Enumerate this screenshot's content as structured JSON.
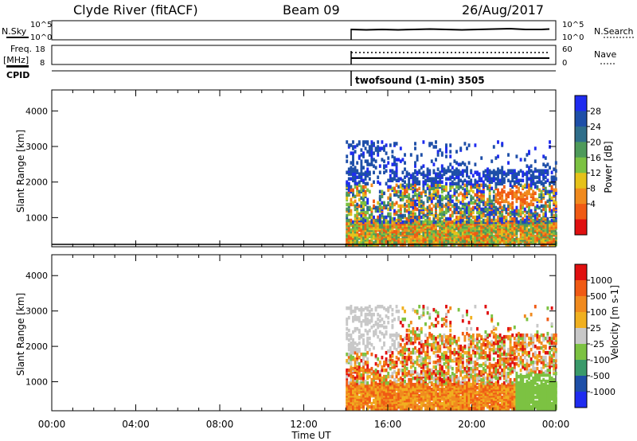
{
  "header": {
    "station": "Clyde River (fitACF)",
    "beam": "Beam 09",
    "date": "26/Aug/2017"
  },
  "summary": {
    "nsky_label": "N.Sky",
    "nsky_ticks": [
      "10^5",
      "10^0"
    ],
    "nsearch_label": "N.Search",
    "nsearch_ticks": [
      "10^5",
      "10^0"
    ],
    "freq_label_1": "Freq.",
    "freq_label_2": "[MHz]",
    "freq_ticks": [
      "18",
      "8"
    ],
    "nave_label": "Nave",
    "nave_ticks": [
      "60",
      "0"
    ],
    "cpid_label": "CPID",
    "cpid_text": "twofsound (1-min) 3505"
  },
  "colors": {
    "power": [
      "#1f2cf0",
      "#1e4fa8",
      "#2f6e8a",
      "#4e9a5a",
      "#7cc242",
      "#e6c21a",
      "#f08a1e",
      "#f05a14",
      "#e01010"
    ],
    "velocity": [
      "#e01010",
      "#f05a14",
      "#f08a1e",
      "#f0b020",
      "#c8c8c8",
      "#7cc242",
      "#3a9a6a",
      "#1e4fa8",
      "#1f2cf0"
    ]
  },
  "chart_data": [
    {
      "type": "heatmap",
      "ylabel": "Slant Range [km]",
      "xlabel": "Time UT",
      "y_ticks": [
        "4000",
        "3000",
        "2000",
        "1000"
      ],
      "x_ticks": [
        "00:00",
        "04:00",
        "08:00",
        "12:00",
        "16:00",
        "20:00",
        "00:00"
      ],
      "colorbar_label": "Power [dB]",
      "colorbar_ticks": [
        "28",
        "24",
        "20",
        "16",
        "12",
        "8",
        "4"
      ],
      "data_start_time": "14:00"
    },
    {
      "type": "heatmap",
      "ylabel": "Slant Range [km]",
      "xlabel": "Time UT",
      "y_ticks": [
        "4000",
        "3000",
        "2000",
        "1000"
      ],
      "x_ticks": [
        "00:00",
        "04:00",
        "08:00",
        "12:00",
        "16:00",
        "20:00",
        "00:00"
      ],
      "colorbar_label": "Velocity [m s-1]",
      "colorbar_ticks": [
        "1000",
        "500",
        "100",
        "25",
        "-25",
        "-100",
        "-500",
        "-1000"
      ],
      "data_start_time": "14:00"
    }
  ],
  "footer": {
    "xlabel": "Time UT"
  }
}
